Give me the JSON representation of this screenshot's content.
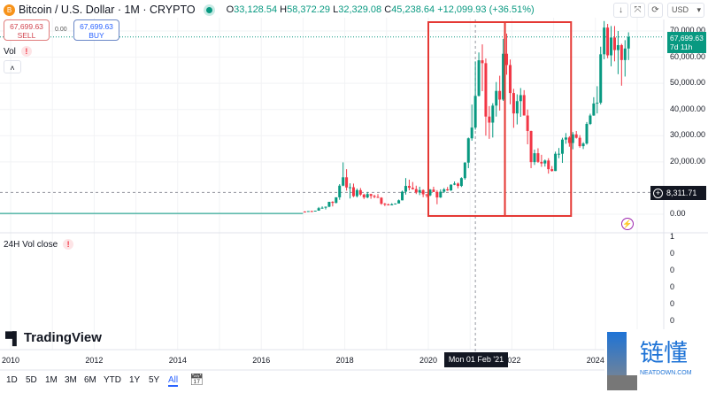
{
  "header": {
    "symbol": "Bitcoin / U.S. Dollar · 1M · CRYPTO",
    "coin_letter": "B",
    "open_label": "O",
    "open": "33,128.54",
    "high_label": "H",
    "high": "58,372.29",
    "low_label": "L",
    "low": "32,329.08",
    "close_label": "C",
    "close": "45,238.64",
    "change": "+12,099.93 (+36.51%)"
  },
  "trade": {
    "sell_price": "67,699.63",
    "sell_label": "SELL",
    "spread": "0.00",
    "buy_price": "67,699.63",
    "buy_label": "BUY"
  },
  "indicators": {
    "vol": "Vol",
    "vol_warning": "!",
    "collapse": "˄",
    "vol24": "24H Vol close",
    "vol24_warning": "!"
  },
  "toolbar": {
    "down_icon": "↓",
    "fullscreen_icon": "⤧",
    "screenshot_icon": "⟳",
    "currency": "USD",
    "currency_arrow": "▾"
  },
  "price_axis": [
    "70,000.00",
    "60,000.00",
    "50,000.00",
    "40,000.00",
    "30,000.00",
    "20,000.00",
    "0.00"
  ],
  "price_values": [
    70,
    60,
    50,
    40,
    30,
    20,
    0
  ],
  "last_price": {
    "value": "67,699.63",
    "countdown": "7d 11h",
    "price": 67.7,
    "color": "#089981"
  },
  "crosshair": {
    "price_label": "8,311.71",
    "price": 8.31117,
    "date_label": "Mon 01 Feb '21",
    "date": "2021-02"
  },
  "vol_axis": [
    "1",
    "0",
    "0",
    "0",
    "0",
    "0",
    "0"
  ],
  "time_axis": [
    "2010",
    "2012",
    "2014",
    "2016",
    "2018",
    "2020",
    "2022",
    "2024"
  ],
  "brand": "TradingView",
  "watermark": {
    "text": "链懂",
    "sub": "NEATDOWN.COM"
  },
  "timeframes": [
    "1D",
    "5D",
    "1M",
    "3M",
    "6M",
    "YTD",
    "1Y",
    "5Y",
    "All"
  ],
  "active_timeframe": "All",
  "colors": {
    "up": "#089981",
    "down": "#f23645",
    "highlight_box": "#e53935"
  },
  "chart_data": {
    "type": "candlestick",
    "units": "USD thousands",
    "start": "2017-01",
    "interval": "1M",
    "ylim": [
      0,
      70
    ],
    "highlight_ranges": [
      [
        "2020-01",
        "2021-11"
      ],
      [
        "2021-11",
        "2023-06"
      ]
    ],
    "ohlc": [
      [
        1.0,
        1.15,
        0.75,
        0.97
      ],
      [
        0.97,
        1.2,
        0.92,
        1.19
      ],
      [
        1.19,
        1.35,
        0.89,
        1.08
      ],
      [
        1.08,
        1.35,
        1.07,
        1.35
      ],
      [
        1.35,
        2.76,
        1.35,
        2.3
      ],
      [
        2.3,
        2.98,
        2.1,
        2.48
      ],
      [
        2.48,
        2.92,
        1.83,
        2.87
      ],
      [
        2.87,
        4.7,
        2.67,
        4.73
      ],
      [
        4.73,
        4.98,
        2.97,
        4.34
      ],
      [
        4.34,
        6.47,
        4.11,
        6.45
      ],
      [
        6.45,
        11.5,
        5.5,
        10.9
      ],
      [
        10.9,
        19.8,
        10.7,
        14.1
      ],
      [
        14.1,
        17.2,
        9.0,
        10.2
      ],
      [
        10.2,
        11.8,
        6.0,
        10.3
      ],
      [
        10.3,
        11.7,
        6.5,
        6.9
      ],
      [
        6.9,
        9.8,
        6.4,
        9.2
      ],
      [
        9.2,
        10.0,
        7.0,
        7.5
      ],
      [
        7.5,
        7.8,
        5.8,
        6.4
      ],
      [
        6.4,
        8.5,
        6.1,
        7.7
      ],
      [
        7.7,
        7.8,
        5.9,
        7.0
      ],
      [
        7.0,
        7.4,
        6.1,
        6.6
      ],
      [
        6.6,
        7.7,
        6.2,
        6.3
      ],
      [
        6.3,
        6.5,
        3.6,
        4.0
      ],
      [
        4.0,
        4.3,
        3.1,
        3.7
      ],
      [
        3.7,
        4.1,
        3.4,
        3.4
      ],
      [
        3.4,
        4.2,
        3.4,
        3.8
      ],
      [
        3.8,
        4.1,
        3.7,
        4.1
      ],
      [
        4.1,
        5.6,
        4.1,
        5.3
      ],
      [
        5.3,
        9.0,
        5.3,
        8.6
      ],
      [
        8.6,
        13.8,
        7.5,
        10.8
      ],
      [
        10.8,
        13.2,
        9.1,
        10.1
      ],
      [
        10.1,
        12.3,
        9.4,
        9.6
      ],
      [
        9.6,
        10.9,
        7.7,
        8.3
      ],
      [
        8.3,
        10.5,
        7.3,
        9.2
      ],
      [
        9.2,
        9.5,
        6.5,
        7.6
      ],
      [
        7.6,
        7.7,
        6.4,
        7.2
      ],
      [
        7.2,
        9.6,
        6.9,
        9.4
      ],
      [
        9.4,
        10.5,
        8.5,
        8.5
      ],
      [
        8.5,
        9.2,
        3.8,
        6.4
      ],
      [
        6.4,
        9.5,
        6.2,
        8.6
      ],
      [
        8.6,
        10.0,
        8.1,
        9.5
      ],
      [
        9.5,
        10.4,
        8.9,
        9.1
      ],
      [
        9.1,
        11.4,
        8.9,
        11.3
      ],
      [
        11.3,
        12.5,
        11.1,
        11.7
      ],
      [
        11.7,
        12.1,
        9.9,
        10.8
      ],
      [
        10.8,
        14.1,
        10.4,
        13.8
      ],
      [
        13.8,
        19.9,
        13.2,
        19.7
      ],
      [
        19.7,
        29.3,
        17.6,
        29.0
      ],
      [
        29.0,
        41.9,
        28.1,
        33.1
      ],
      [
        33.1,
        58.4,
        32.3,
        45.2
      ],
      [
        45.2,
        61.8,
        45.0,
        58.8
      ],
      [
        58.8,
        64.9,
        47.0,
        57.7
      ],
      [
        57.7,
        59.5,
        30.0,
        37.3
      ],
      [
        37.3,
        41.3,
        28.8,
        35.0
      ],
      [
        35.0,
        42.4,
        29.3,
        41.5
      ],
      [
        41.5,
        50.5,
        37.3,
        47.1
      ],
      [
        47.1,
        52.9,
        39.6,
        43.8
      ],
      [
        43.8,
        67.0,
        43.3,
        61.3
      ],
      [
        61.3,
        69.0,
        53.3,
        57.0
      ],
      [
        57.0,
        59.1,
        42.0,
        46.3
      ],
      [
        46.3,
        47.9,
        33.0,
        38.5
      ],
      [
        38.5,
        45.8,
        34.3,
        43.2
      ],
      [
        43.2,
        48.2,
        37.2,
        45.5
      ],
      [
        45.5,
        47.4,
        37.7,
        37.7
      ],
      [
        37.7,
        40.0,
        26.7,
        31.8
      ],
      [
        31.8,
        31.9,
        17.6,
        19.9
      ],
      [
        19.9,
        24.7,
        18.8,
        23.3
      ],
      [
        23.3,
        25.2,
        19.6,
        20.0
      ],
      [
        20.0,
        22.7,
        18.1,
        19.4
      ],
      [
        19.4,
        20.9,
        18.2,
        20.5
      ],
      [
        20.5,
        21.4,
        15.5,
        17.2
      ],
      [
        17.2,
        18.4,
        16.3,
        16.5
      ],
      [
        16.5,
        23.9,
        16.5,
        23.1
      ],
      [
        23.1,
        25.3,
        21.4,
        23.1
      ],
      [
        23.1,
        29.2,
        19.6,
        28.5
      ],
      [
        28.5,
        31.0,
        26.9,
        29.3
      ],
      [
        29.3,
        29.8,
        25.8,
        27.2
      ],
      [
        27.2,
        31.4,
        24.8,
        30.5
      ],
      [
        30.5,
        31.8,
        28.9,
        29.2
      ],
      [
        29.2,
        30.2,
        25.4,
        26.0
      ],
      [
        26.0,
        27.5,
        24.9,
        27.0
      ],
      [
        27.0,
        35.2,
        26.6,
        34.5
      ],
      [
        34.5,
        38.4,
        34.1,
        37.7
      ],
      [
        37.7,
        44.7,
        37.6,
        42.3
      ],
      [
        42.3,
        48.9,
        38.5,
        42.6
      ],
      [
        42.6,
        64.0,
        41.9,
        61.1
      ],
      [
        61.1,
        73.8,
        59.2,
        71.3
      ],
      [
        71.3,
        72.7,
        59.6,
        60.7
      ],
      [
        60.7,
        71.9,
        56.5,
        67.5
      ],
      [
        67.5,
        71.9,
        58.4,
        62.7
      ],
      [
        62.7,
        70.0,
        53.5,
        64.6
      ],
      [
        64.6,
        65.1,
        49.1,
        58.9
      ],
      [
        58.9,
        66.5,
        52.6,
        63.3
      ],
      [
        63.3,
        69.5,
        58.9,
        67.7
      ]
    ]
  }
}
